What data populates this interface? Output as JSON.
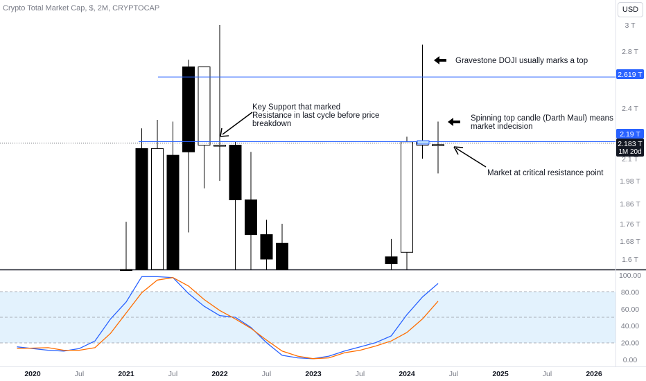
{
  "header": {
    "symbol_title": "Crypto Total Market Cap, $, 2M, CRYPTOCAP",
    "currency_label": "USD"
  },
  "price_labels": {
    "resistance_line": "2.619 T",
    "level_2_19": "2.19 T",
    "current_price": "2.183 T",
    "countdown": "1M 20d"
  },
  "colors": {
    "bull_body": "#ffffff",
    "bear_body": "#000000",
    "candle_outline": "#000000",
    "resistance_line": "#2962ff",
    "k_line": "#2962ff",
    "d_line": "#ff6d00",
    "stoch_band_fill": "#e3f2fd",
    "axis_text": "#787b86",
    "label_bg_blue": "#2962ff",
    "label_bg_dark": "#131722"
  },
  "chart_data": [
    {
      "type": "candlestick",
      "title": "Crypto Total Market Cap, $, 2M, CRYPTOCAP",
      "y_axis_ticks": [
        "3 T",
        "2.8 T",
        "2.4 T",
        "2.1 T",
        "1.98 T",
        "1.86 T",
        "1.76 T",
        "1.68 T",
        "1.6 T"
      ],
      "y_axis_tick_values": [
        3.0,
        2.8,
        2.4,
        2.1,
        1.98,
        1.86,
        1.76,
        1.68,
        1.6
      ],
      "x_axis_ticks": [
        "2020",
        "Jul",
        "2021",
        "Jul",
        "2022",
        "Jul",
        "2023",
        "Jul",
        "2024",
        "Jul",
        "2025",
        "Jul",
        "2026"
      ],
      "x_axis_tick_values": [
        "2020-01",
        "2020-07",
        "2021-01",
        "2021-07",
        "2022-01",
        "2022-07",
        "2023-01",
        "2023-07",
        "2024-01",
        "2024-07",
        "2025-01",
        "2025-07",
        "2026-01"
      ],
      "candles": [
        {
          "date": "2021-01",
          "open": 1.55,
          "high": 1.77,
          "low": 1.45,
          "close": 1.45
        },
        {
          "date": "2021-03",
          "open": 2.16,
          "high": 2.28,
          "low": 1.45,
          "close": 1.5
        },
        {
          "date": "2021-05",
          "open": 1.5,
          "high": 2.33,
          "low": 1.45,
          "close": 2.16
        },
        {
          "date": "2021-07",
          "open": 2.12,
          "high": 2.32,
          "low": 1.5,
          "close": 1.52
        },
        {
          "date": "2021-09",
          "open": 2.69,
          "high": 2.74,
          "low": 1.72,
          "close": 2.14
        },
        {
          "date": "2021-11",
          "open": 2.18,
          "high": 2.69,
          "low": 1.94,
          "close": 2.69
        },
        {
          "date": "2022-01",
          "open": 2.18,
          "high": 3.0,
          "low": 1.98,
          "close": 2.18
        },
        {
          "date": "2022-03",
          "open": 2.18,
          "high": 2.2,
          "low": 1.45,
          "close": 1.88
        },
        {
          "date": "2022-05",
          "open": 1.88,
          "high": 2.14,
          "low": 1.45,
          "close": 1.71
        },
        {
          "date": "2022-07",
          "open": 1.71,
          "high": 1.78,
          "low": 1.45,
          "close": 1.6
        },
        {
          "date": "2022-09",
          "open": 1.67,
          "high": 1.76,
          "low": 1.45,
          "close": 1.45
        },
        {
          "date": "2023-11",
          "open": 1.61,
          "high": 1.69,
          "low": 1.45,
          "close": 1.58
        },
        {
          "date": "2024-01",
          "open": 1.63,
          "high": 2.23,
          "low": 1.55,
          "close": 2.2
        },
        {
          "date": "2024-03",
          "open": 2.18,
          "high": 2.85,
          "low": 2.1,
          "close": 2.2
        },
        {
          "date": "2024-05",
          "open": 2.182,
          "high": 2.32,
          "low": 2.02,
          "close": 2.183
        }
      ],
      "horizontal_lines": [
        {
          "value": 2.619,
          "label": "2.619 T"
        },
        {
          "value": 2.183,
          "label": "2.183 T"
        }
      ],
      "annotations": [
        "Gravestone DOJI usually marks a top",
        "Key Support that marked\nResistance in last cycle before price\nbreakdown",
        "Spinning top candle (Darth Maul) means\nmarket indecision",
        "Market at critical resistance point"
      ]
    },
    {
      "type": "line",
      "title": "",
      "y_axis_ticks": [
        "100.00",
        "80.00",
        "60.00",
        "40.00",
        "20.00",
        "0.00"
      ],
      "y_axis_tick_values": [
        100,
        80,
        60,
        40,
        20,
        0
      ],
      "ylim": [
        0,
        100
      ],
      "bands": [
        20,
        50,
        80
      ],
      "series": [
        {
          "color": "#2962ff",
          "x": [
            "2019-11",
            "2020-03",
            "2020-05",
            "2020-07",
            "2020-09",
            "2020-11",
            "2021-01",
            "2021-03",
            "2021-05",
            "2021-07",
            "2021-09",
            "2021-11",
            "2022-01",
            "2022-03",
            "2022-05",
            "2022-07",
            "2022-09",
            "2022-11",
            "2023-01",
            "2023-03",
            "2023-05",
            "2023-07",
            "2023-09",
            "2023-11",
            "2024-01",
            "2024-03",
            "2024-05"
          ],
          "values": [
            15,
            11,
            10,
            13,
            22,
            48,
            68,
            98,
            98,
            97,
            78,
            63,
            52,
            50,
            38,
            20,
            5,
            2,
            1,
            4,
            10,
            15,
            20,
            28,
            53,
            74,
            90
          ]
        },
        {
          "color": "#ff6d00",
          "x": [
            "2019-11",
            "2020-03",
            "2020-05",
            "2020-07",
            "2020-09",
            "2020-11",
            "2021-01",
            "2021-03",
            "2021-05",
            "2021-07",
            "2021-09",
            "2021-11",
            "2022-01",
            "2022-03",
            "2022-05",
            "2022-07",
            "2022-09",
            "2022-11",
            "2023-01",
            "2023-03",
            "2023-05",
            "2023-07",
            "2023-09",
            "2023-11",
            "2024-01",
            "2024-03",
            "2024-05"
          ],
          "values": [
            13,
            14,
            11,
            11,
            14,
            31,
            55,
            79,
            94,
            97,
            87,
            71,
            58,
            48,
            37,
            23,
            10,
            4,
            1,
            2,
            8,
            11,
            16,
            22,
            32,
            48,
            69
          ]
        }
      ]
    }
  ]
}
